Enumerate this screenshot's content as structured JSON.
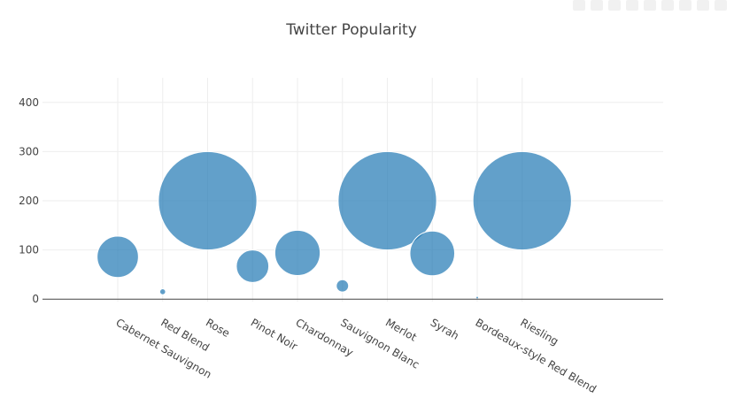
{
  "chart_data": {
    "type": "scatter",
    "title": "Twitter Popularity",
    "xlabel": "",
    "ylabel": "",
    "categories": [
      "Cabernet Sauvignon",
      "Red Blend",
      "Rose",
      "Pinot Noir",
      "Chardonnay",
      "Sauvignon Blanc",
      "Merlot",
      "Syrah",
      "Bordeaux-style Red Blend",
      "Riesling"
    ],
    "values": [
      86,
      15,
      200,
      67,
      94,
      27,
      200,
      93,
      3,
      200
    ],
    "marker_sizes": [
      84,
      12,
      200,
      66,
      92,
      25,
      200,
      91,
      4,
      200
    ],
    "ylim": [
      -5,
      450
    ],
    "yticks": [
      0,
      100,
      200,
      300,
      400
    ],
    "grid": true,
    "legend": "none",
    "colors": {
      "marker": "#1f77b4",
      "grid": "#eeeeee",
      "axis": "#444444",
      "text": "#444444"
    }
  }
}
